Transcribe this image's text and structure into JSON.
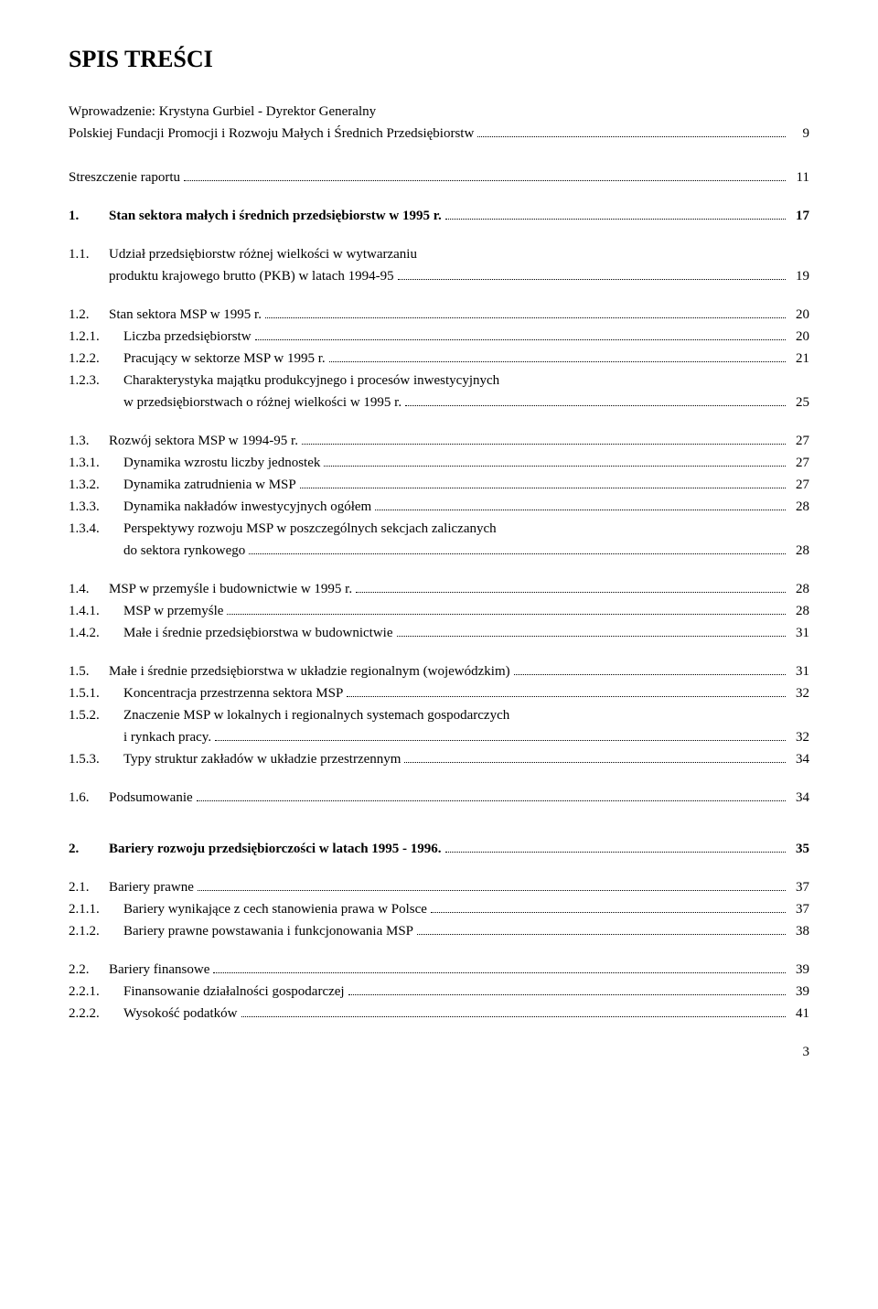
{
  "title": "SPIS TREŚCI",
  "intro": {
    "line1": "Wprowadzenie: Krystyna Gurbiel - Dyrektor Generalny",
    "line2": "Polskiej Fundacji Promocji i Rozwoju Małych i Średnich Przedsiębiorstw",
    "page": "9"
  },
  "summary": {
    "text": "Streszczenie raportu",
    "page": "11"
  },
  "s1": {
    "num": "1.",
    "text": "Stan sektora małych i średnich przedsiębiorstw w 1995 r.",
    "page": "17"
  },
  "s11a": {
    "num": "1.1.",
    "text": "Udział przedsiębiorstw różnej wielkości w wytwarzaniu"
  },
  "s11b": {
    "text": "produktu krajowego brutto (PKB) w latach 1994-95",
    "page": "19"
  },
  "s12": {
    "num": "1.2.",
    "text": "Stan sektora MSP w 1995 r.",
    "page": "20"
  },
  "s121": {
    "num": "1.2.1.",
    "text": "Liczba przedsiębiorstw",
    "page": "20"
  },
  "s122": {
    "num": "1.2.2.",
    "text": "Pracujący w sektorze MSP w 1995 r.",
    "page": "21"
  },
  "s123a": {
    "num": "1.2.3.",
    "text": "Charakterystyka majątku produkcyjnego i procesów inwestycyjnych"
  },
  "s123b": {
    "text": "w przedsiębiorstwach o różnej wielkości w 1995 r.",
    "page": "25"
  },
  "s13": {
    "num": "1.3.",
    "text": "Rozwój sektora MSP w 1994-95 r.",
    "page": "27"
  },
  "s131": {
    "num": "1.3.1.",
    "text": "Dynamika wzrostu liczby jednostek",
    "page": "27"
  },
  "s132": {
    "num": "1.3.2.",
    "text": "Dynamika zatrudnienia w MSP",
    "page": "27"
  },
  "s133": {
    "num": "1.3.3.",
    "text": "Dynamika nakładów inwestycyjnych ogółem",
    "page": "28"
  },
  "s134a": {
    "num": "1.3.4.",
    "text": "Perspektywy rozwoju MSP w poszczególnych sekcjach zaliczanych"
  },
  "s134b": {
    "text": "do sektora rynkowego",
    "page": "28"
  },
  "s14": {
    "num": "1.4.",
    "text": "MSP w przemyśle i budownictwie w 1995 r.",
    "page": "28"
  },
  "s141": {
    "num": "1.4.1.",
    "text": "MSP w przemyśle",
    "page": "28"
  },
  "s142": {
    "num": "1.4.2.",
    "text": "Małe i średnie przedsiębiorstwa w budownictwie",
    "page": "31"
  },
  "s15": {
    "num": "1.5.",
    "text": "Małe i średnie przedsiębiorstwa w układzie regionalnym (wojewódzkim)",
    "page": "31"
  },
  "s151": {
    "num": "1.5.1.",
    "text": "Koncentracja przestrzenna sektora MSP",
    "page": "32"
  },
  "s152a": {
    "num": "1.5.2.",
    "text": "Znaczenie MSP w lokalnych i regionalnych systemach gospodarczych"
  },
  "s152b": {
    "text": "i rynkach pracy.",
    "page": "32"
  },
  "s153": {
    "num": "1.5.3.",
    "text": "Typy struktur zakładów w układzie przestrzennym",
    "page": "34"
  },
  "s16": {
    "num": "1.6.",
    "text": "Podsumowanie",
    "page": "34"
  },
  "s2": {
    "num": "2.",
    "text": "Bariery rozwoju przedsiębiorczości w latach 1995 - 1996.",
    "page": "35"
  },
  "s21": {
    "num": "2.1.",
    "text": "Bariery prawne",
    "page": "37"
  },
  "s211": {
    "num": "2.1.1.",
    "text": "Bariery wynikające z cech stanowienia prawa w Polsce",
    "page": "37"
  },
  "s212": {
    "num": "2.1.2.",
    "text": "Bariery prawne powstawania i funkcjonowania MSP",
    "page": "38"
  },
  "s22": {
    "num": "2.2.",
    "text": "Bariery finansowe",
    "page": "39"
  },
  "s221": {
    "num": "2.2.1.",
    "text": "Finansowanie działalności gospodarczej",
    "page": "39"
  },
  "s222": {
    "num": "2.2.2.",
    "text": "Wysokość podatków",
    "page": "41"
  },
  "pageNumber": "3"
}
